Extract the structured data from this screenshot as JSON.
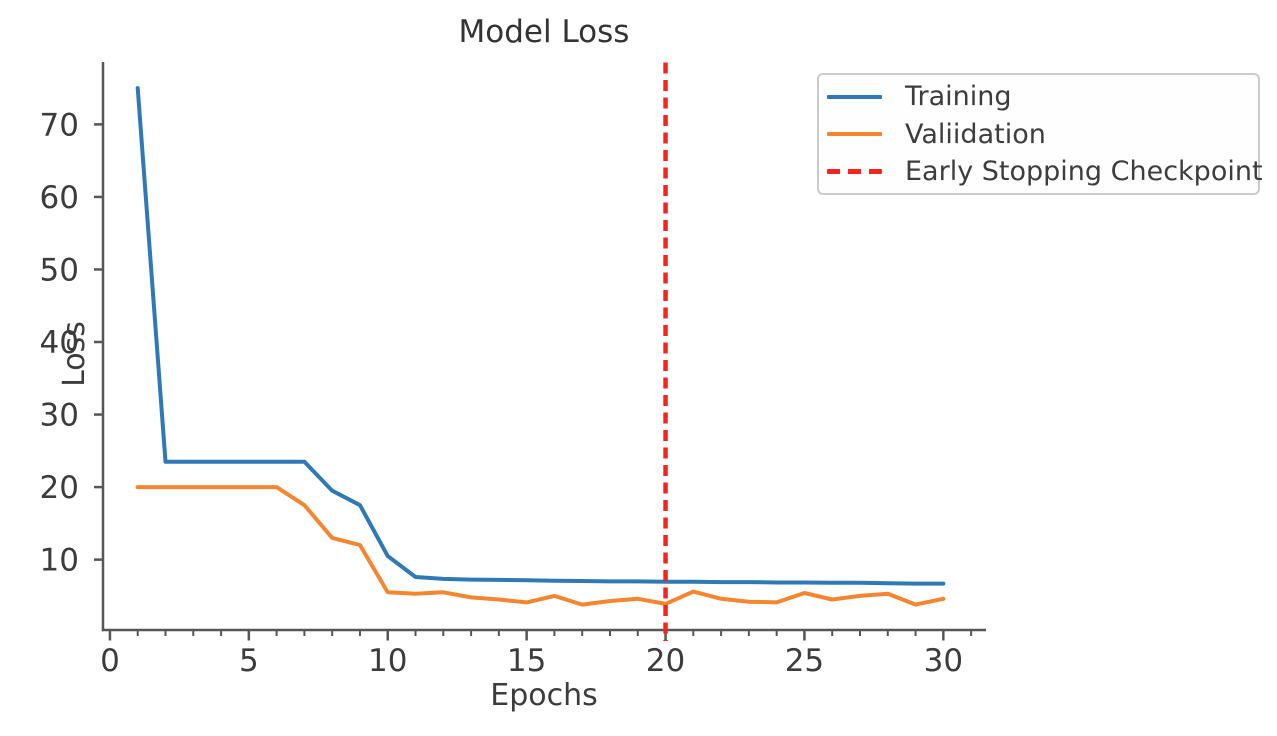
{
  "chart_data": {
    "type": "line",
    "title": "Model Loss",
    "xlabel": "Epochs",
    "ylabel": "Loss",
    "grid": false,
    "legend_position": "upper right",
    "axis_color": "#565656",
    "text_color": "#3c3c3c",
    "xticks": [
      0,
      5,
      10,
      15,
      20,
      25,
      30
    ],
    "yticks": [
      10,
      20,
      30,
      40,
      50,
      60,
      70
    ],
    "xlim": [
      -0.25,
      31.5
    ],
    "ylim": [
      0.3,
      78.6
    ],
    "x": [
      1,
      2,
      3,
      4,
      5,
      6,
      7,
      8,
      9,
      10,
      11,
      12,
      13,
      14,
      15,
      16,
      17,
      18,
      19,
      20,
      21,
      22,
      23,
      24,
      25,
      26,
      27,
      28,
      29,
      30
    ],
    "series": [
      {
        "name": "Training",
        "color": "#2f79b6",
        "values": [
          75,
          23.5,
          23.5,
          23.5,
          23.5,
          23.5,
          23.5,
          19.5,
          17.5,
          10.5,
          7.6,
          7.35,
          7.25,
          7.2,
          7.15,
          7.1,
          7.05,
          7.0,
          7.0,
          6.95,
          6.95,
          6.9,
          6.9,
          6.85,
          6.85,
          6.8,
          6.8,
          6.75,
          6.7,
          6.7
        ]
      },
      {
        "name": "Valiidation",
        "color": "#f5862f",
        "values": [
          20,
          20,
          20,
          20,
          20,
          20,
          17.5,
          13,
          12,
          5.5,
          5.3,
          5.5,
          4.8,
          4.5,
          4.1,
          5.0,
          3.8,
          4.3,
          4.6,
          3.9,
          5.6,
          4.6,
          4.2,
          4.1,
          5.4,
          4.5,
          5.0,
          5.3,
          3.8,
          4.6
        ]
      }
    ],
    "vline": {
      "x": 20,
      "label": "Early Stopping Checkpoint",
      "color": "#f8231c",
      "style": "dashed"
    }
  }
}
